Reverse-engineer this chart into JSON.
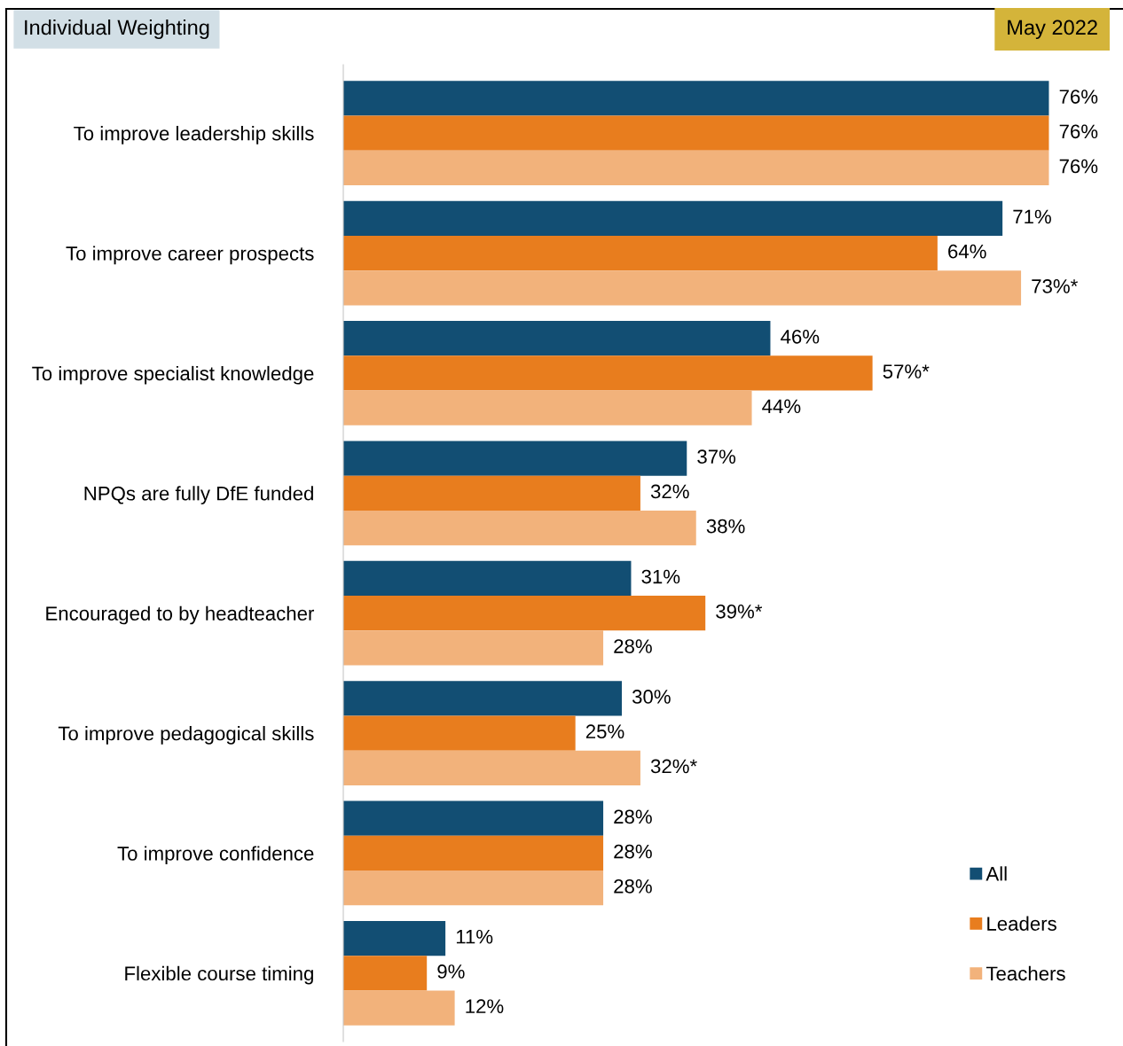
{
  "chart_data": {
    "type": "bar",
    "orientation": "horizontal",
    "title": "Individual Weighting",
    "subtitle": "May 2022",
    "categories": [
      "To improve leadership skills",
      "To improve career prospects",
      "To improve specialist knowledge",
      "NPQs are fully DfE funded",
      "Encouraged to by headteacher",
      "To improve pedagogical skills",
      "To improve confidence",
      "Flexible course timing"
    ],
    "series": [
      {
        "name": "All",
        "color": "#124e73",
        "values": [
          76,
          71,
          46,
          37,
          31,
          30,
          28,
          11
        ],
        "value_labels": [
          "76%",
          "71%",
          "46%",
          "37%",
          "31%",
          "30%",
          "28%",
          "11%"
        ]
      },
      {
        "name": "Leaders",
        "color": "#e87d1e",
        "values": [
          76,
          64,
          57,
          32,
          39,
          25,
          28,
          9
        ],
        "value_labels": [
          "76%",
          "64%",
          "57%*",
          "32%",
          "39%*",
          "25%",
          "28%",
          "9%"
        ]
      },
      {
        "name": "Teachers",
        "color": "#f2b27b",
        "values": [
          76,
          73,
          44,
          38,
          28,
          32,
          28,
          12
        ],
        "value_labels": [
          "76%",
          "73%*",
          "44%",
          "38%",
          "28%",
          "32%*",
          "28%",
          "12%"
        ]
      }
    ],
    "tick_labels": "y",
    "grid": false,
    "legend": "bottom right",
    "marker": "square"
  }
}
